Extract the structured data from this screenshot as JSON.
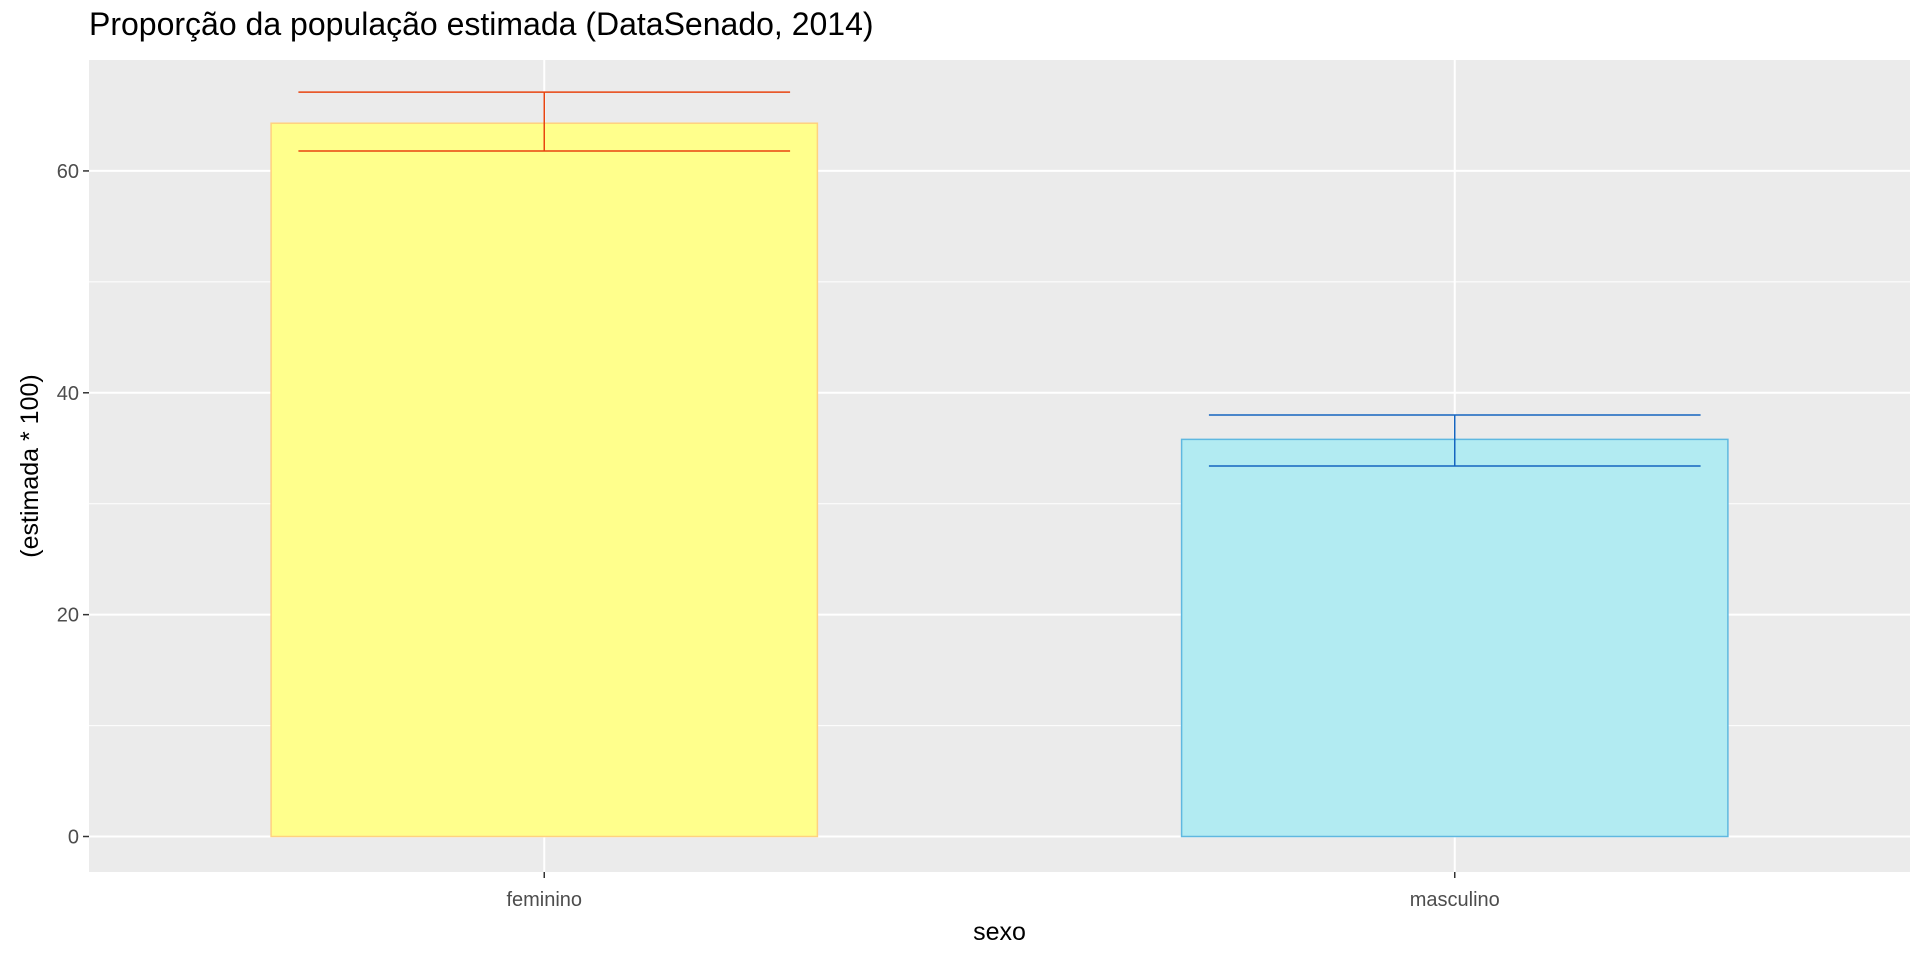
{
  "chart_data": {
    "type": "bar",
    "title": "Proporção da população estimada (DataSenado, 2014)",
    "xlabel": "sexo",
    "ylabel": "(estimada * 100)",
    "categories": [
      "feminino",
      "masculino"
    ],
    "values": [
      64.3,
      35.8
    ],
    "error_bars": [
      {
        "lower": 61.8,
        "upper": 67.1
      },
      {
        "lower": 33.4,
        "upper": 38.0
      }
    ],
    "bar_fill": [
      "#FFFF8C",
      "#B2EBF2"
    ],
    "bar_border": [
      "#FFD27F",
      "#5FB8E0"
    ],
    "error_color": [
      "#E8440F",
      "#1565C0"
    ],
    "ylim": [
      -3.2,
      70
    ],
    "yticks": [
      0,
      20,
      40,
      60
    ],
    "grid": true,
    "panel_background": "#EBEBEB",
    "grid_color": "#FFFFFF"
  }
}
